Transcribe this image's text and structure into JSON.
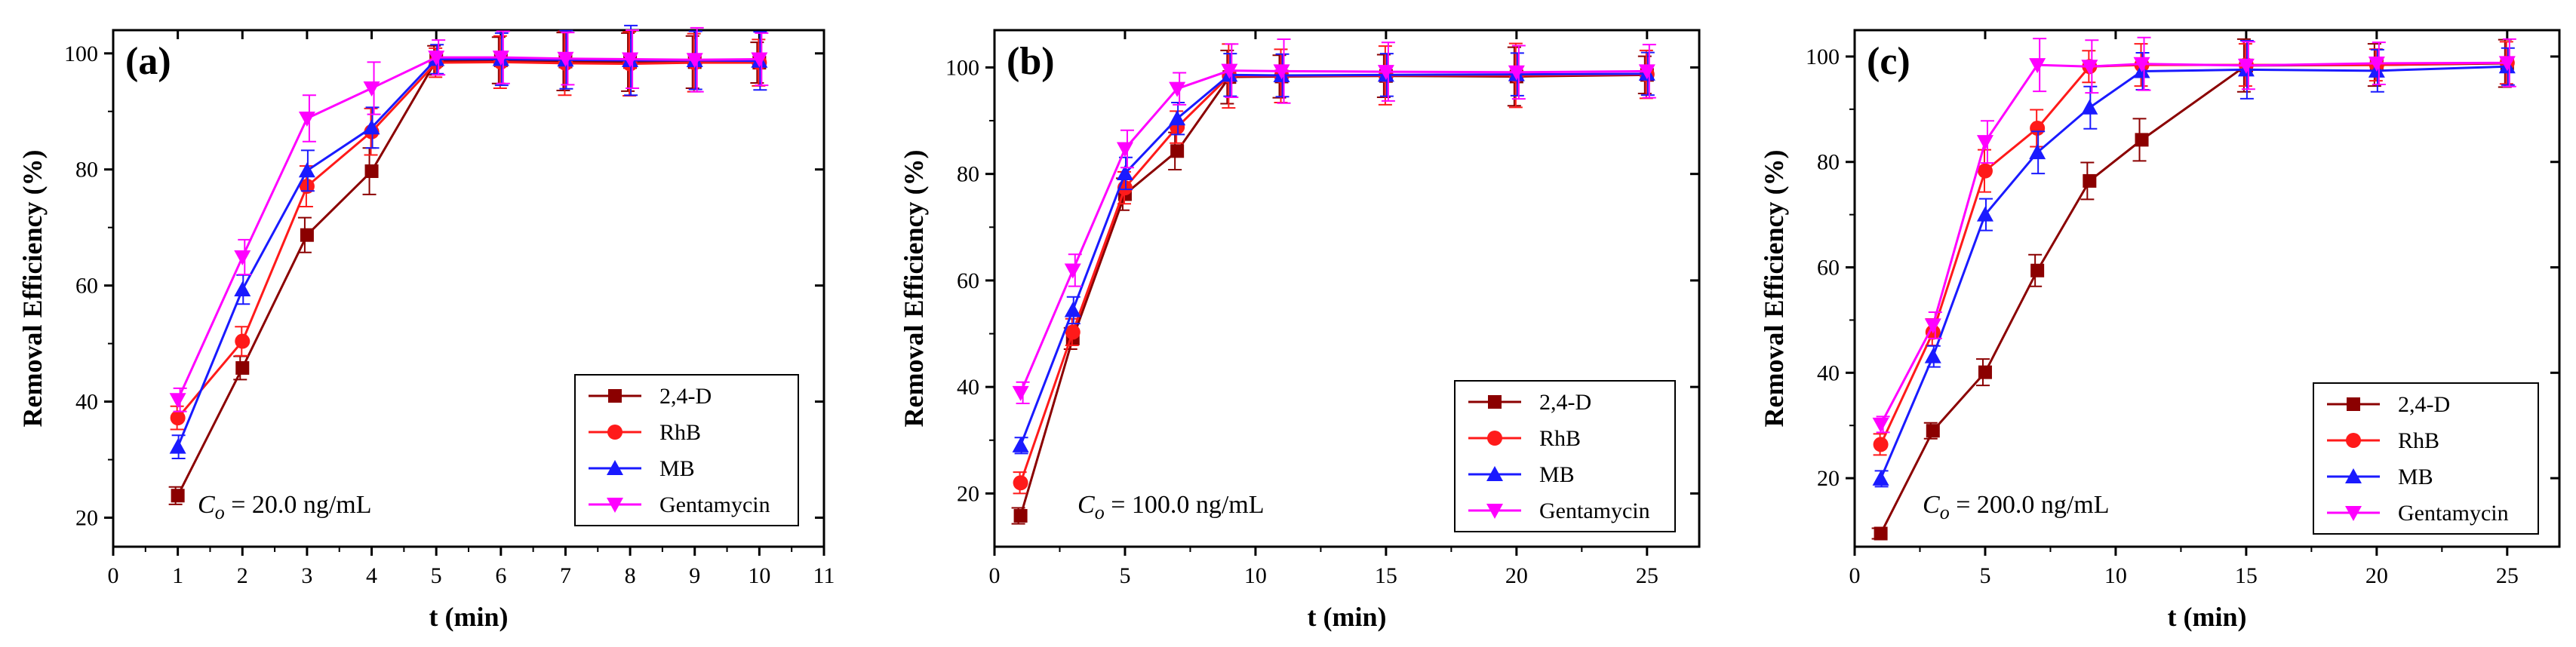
{
  "colors": {
    "s24d": "#8b0000",
    "rhb": "#ff1a1a",
    "mb": "#1a1aff",
    "gentamycin": "#ff00ff"
  },
  "chart_data": [
    {
      "type": "line",
      "panel_label": "(a)",
      "xlabel": "t (min)",
      "ylabel": "Removal Efficiency (%)",
      "xlim": [
        0,
        11
      ],
      "ylim": [
        15,
        104
      ],
      "xticks": [
        0,
        1,
        2,
        3,
        4,
        5,
        6,
        7,
        8,
        9,
        10,
        11
      ],
      "yticks": [
        20,
        40,
        60,
        80,
        100
      ],
      "annotation_var": "C",
      "annotation_sub": "o",
      "annotation_value": " = 20.0 ng/mL",
      "legend_position": "bottom-right",
      "series": [
        {
          "name": "2,4-D",
          "marker": "square",
          "color": "#8b0000",
          "x": [
            1,
            2,
            3,
            4,
            5,
            6,
            7,
            8,
            9,
            10
          ],
          "values": [
            23.8,
            45.8,
            68.7,
            79.7,
            98.8,
            98.8,
            98.6,
            98.5,
            98.5,
            98.4
          ],
          "err": [
            1.5,
            2.0,
            3.0,
            4.0,
            2.5,
            4.0,
            5.0,
            5.0,
            4.5,
            3.5
          ]
        },
        {
          "name": "RhB",
          "marker": "circle",
          "color": "#ff1a1a",
          "x": [
            1,
            2,
            3,
            4,
            5,
            6,
            7,
            8,
            9,
            10
          ],
          "values": [
            37.2,
            50.4,
            77.1,
            86.5,
            98.4,
            98.5,
            98.3,
            98.2,
            98.4,
            98.4
          ],
          "err": [
            2.0,
            2.5,
            3.5,
            4.0,
            2.5,
            4.5,
            5.5,
            5.5,
            5.0,
            4.0
          ]
        },
        {
          "name": "MB",
          "marker": "triangle-up",
          "color": "#1a1aff",
          "x": [
            1,
            2,
            3,
            4,
            5,
            6,
            7,
            8,
            9,
            10
          ],
          "values": [
            32.2,
            59.3,
            79.8,
            87.2,
            99.0,
            99.0,
            98.9,
            98.8,
            98.8,
            98.7
          ],
          "err": [
            2.0,
            2.5,
            3.5,
            3.5,
            2.5,
            4.5,
            5.0,
            6.0,
            5.0,
            5.0
          ]
        },
        {
          "name": "Gentamycin",
          "marker": "triangle-down",
          "color": "#ff00ff",
          "x": [
            1,
            2,
            3,
            4,
            5,
            6,
            7,
            8,
            9,
            10
          ],
          "values": [
            40.3,
            64.9,
            88.8,
            94.0,
            99.3,
            99.3,
            99.1,
            99.0,
            98.9,
            99.0
          ],
          "err": [
            2.0,
            3.0,
            4.0,
            4.5,
            3.0,
            4.5,
            4.5,
            5.0,
            5.5,
            4.5
          ]
        }
      ]
    },
    {
      "type": "line",
      "panel_label": "(b)",
      "xlabel": "t (min)",
      "ylabel": "Removal Efficiency (%)",
      "xlim": [
        0,
        27
      ],
      "ylim": [
        10,
        107
      ],
      "xticks": [
        0,
        5,
        10,
        15,
        20,
        25
      ],
      "yticks": [
        20,
        40,
        60,
        80,
        100
      ],
      "annotation_var": "C",
      "annotation_sub": "o",
      "annotation_value": " = 100.0 ng/mL",
      "legend_position": "bottom-right",
      "series": [
        {
          "name": "2,4-D",
          "marker": "square",
          "color": "#8b0000",
          "x": [
            1,
            3,
            5,
            7,
            9,
            11,
            15,
            20,
            25
          ],
          "values": [
            15.8,
            49.1,
            76.2,
            84.3,
            98.2,
            98.3,
            98.4,
            98.3,
            98.6
          ],
          "err": [
            1.5,
            2.0,
            3.0,
            3.5,
            5.0,
            4.0,
            4.0,
            5.5,
            3.5
          ]
        },
        {
          "name": "RhB",
          "marker": "circle",
          "color": "#ff1a1a",
          "x": [
            1,
            3,
            5,
            7,
            9,
            11,
            15,
            20,
            25
          ],
          "values": [
            22.0,
            50.3,
            77.4,
            88.8,
            98.4,
            98.4,
            98.5,
            98.5,
            98.7
          ],
          "err": [
            2.0,
            2.5,
            3.0,
            3.0,
            6.0,
            5.0,
            5.5,
            6.0,
            4.5
          ]
        },
        {
          "name": "MB",
          "marker": "triangle-up",
          "color": "#1a1aff",
          "x": [
            1,
            3,
            5,
            7,
            9,
            11,
            15,
            20,
            25
          ],
          "values": [
            29.0,
            54.4,
            80.1,
            90.4,
            98.6,
            98.5,
            98.6,
            98.7,
            98.8
          ],
          "err": [
            1.5,
            2.5,
            3.0,
            3.0,
            4.0,
            4.0,
            4.0,
            4.0,
            4.0
          ]
        },
        {
          "name": "Gentamycin",
          "marker": "triangle-down",
          "color": "#ff00ff",
          "x": [
            1,
            3,
            5,
            7,
            9,
            11,
            15,
            20,
            25
          ],
          "values": [
            38.9,
            61.9,
            84.7,
            96.0,
            99.4,
            99.3,
            99.2,
            99.1,
            99.3
          ],
          "err": [
            2.0,
            3.0,
            3.5,
            3.0,
            5.0,
            6.0,
            5.5,
            5.0,
            5.0
          ]
        }
      ]
    },
    {
      "type": "line",
      "panel_label": "(c)",
      "xlabel": "t (min)",
      "ylabel": "Removal Efficiency (%)",
      "xlim": [
        0,
        27
      ],
      "ylim": [
        7,
        105
      ],
      "xticks": [
        0,
        5,
        10,
        15,
        20,
        25
      ],
      "yticks": [
        20,
        40,
        60,
        80,
        100
      ],
      "annotation_var": "C",
      "annotation_sub": "o",
      "annotation_value": " = 200.0 ng/mL",
      "legend_position": "bottom-right",
      "series": [
        {
          "name": "2,4-D",
          "marker": "square",
          "color": "#8b0000",
          "x": [
            1,
            3,
            5,
            7,
            9,
            11,
            15,
            20,
            25
          ],
          "values": [
            9.5,
            29.0,
            40.1,
            59.4,
            76.4,
            84.2,
            98.3,
            98.4,
            98.7
          ],
          "err": [
            1.0,
            1.5,
            2.5,
            3.0,
            3.5,
            4.0,
            5.0,
            4.0,
            4.5
          ]
        },
        {
          "name": "RhB",
          "marker": "circle",
          "color": "#ff1a1a",
          "x": [
            1,
            3,
            5,
            7,
            9,
            11,
            15,
            20,
            25
          ],
          "values": [
            26.4,
            47.7,
            78.3,
            86.4,
            98.1,
            98.4,
            98.4,
            98.4,
            98.8
          ],
          "err": [
            2.0,
            2.5,
            4.0,
            3.5,
            3.0,
            4.0,
            4.0,
            3.0,
            4.0
          ]
        },
        {
          "name": "MB",
          "marker": "triangle-up",
          "color": "#1a1aff",
          "x": [
            1,
            3,
            5,
            7,
            9,
            11,
            15,
            20,
            25
          ],
          "values": [
            19.9,
            43.1,
            70.0,
            81.8,
            90.3,
            97.2,
            97.5,
            97.3,
            98.1
          ],
          "err": [
            1.5,
            2.0,
            3.0,
            4.0,
            4.0,
            3.5,
            5.5,
            4.0,
            3.5
          ]
        },
        {
          "name": "Gentamycin",
          "marker": "triangle-down",
          "color": "#ff00ff",
          "x": [
            1,
            3,
            5,
            7,
            9,
            11,
            15,
            20,
            25
          ],
          "values": [
            30.2,
            49.0,
            83.8,
            98.4,
            98.1,
            98.6,
            98.3,
            98.7,
            98.8
          ],
          "err": [
            1.5,
            2.5,
            4.0,
            5.0,
            5.0,
            5.0,
            4.5,
            4.0,
            4.5
          ]
        }
      ]
    }
  ]
}
